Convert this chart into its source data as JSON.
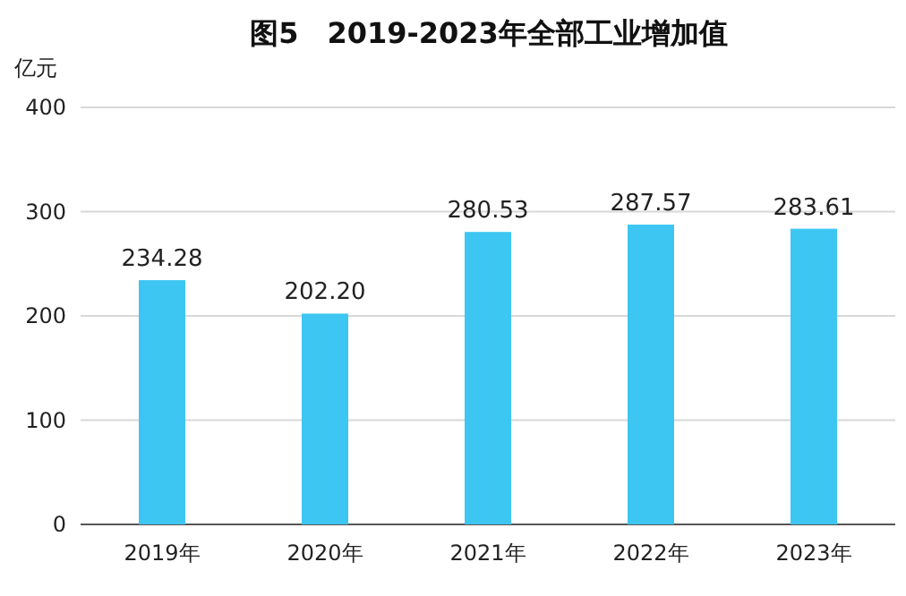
{
  "chart_data": {
    "type": "bar",
    "title": "图5　2019-2023年全部工业增加值",
    "ylabel": "亿元",
    "categories": [
      "2019年",
      "2020年",
      "2021年",
      "2022年",
      "2023年"
    ],
    "values": [
      234.28,
      202.2,
      280.53,
      287.57,
      283.61
    ],
    "value_labels": [
      "234.28",
      "202.20",
      "280.53",
      "287.57",
      "283.61"
    ],
    "color": "#3ec6f2",
    "ylim": [
      0,
      400
    ],
    "yticks": [
      0,
      100,
      200,
      300,
      400
    ],
    "grid": "y"
  }
}
